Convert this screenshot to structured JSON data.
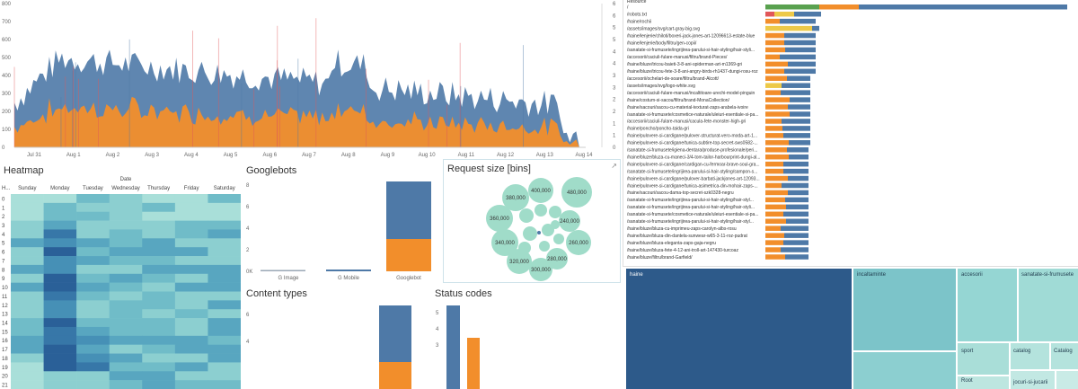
{
  "colors": {
    "blue": "#4e79a7",
    "orange": "#f28e2b",
    "green": "#59a14f",
    "yellow": "#edc948",
    "red": "#e15759",
    "teal_bubble": "#a0dcc9",
    "heat_low": "#c6ece4",
    "heat_high": "#1e5c8c",
    "tm_dark": "#2d5a8a",
    "tm_mid": "#7cc4c9",
    "tm_light": "#b4e3dd"
  },
  "timeline": {
    "x_ticks": [
      "Jul 31",
      "Aug 1",
      "Aug 2",
      "Aug 3",
      "Aug 4",
      "Aug 5",
      "Aug 6",
      "Aug 7",
      "Aug 8",
      "Aug 9",
      "Aug 10",
      "Aug 11",
      "Aug 12",
      "Aug 13",
      "Aug 14"
    ],
    "y_ticks": [
      "0",
      "100",
      "200",
      "300",
      "400",
      "500",
      "600",
      "700",
      "800"
    ],
    "y2_ticks": [
      "0",
      "1",
      "1",
      "2",
      "2",
      "3",
      "3",
      "4",
      "4",
      "5",
      "5",
      "6",
      "6"
    ]
  },
  "heatmap": {
    "title": "Heatmap",
    "col_group_label": "Date",
    "row_header": "H...",
    "columns": [
      "Sunday",
      "Monday",
      "Tuesday",
      "Wednesday",
      "Thursday",
      "Friday",
      "Saturday"
    ],
    "rows": [
      "0",
      "1",
      "2",
      "3",
      "4",
      "5",
      "6",
      "7",
      "8",
      "9",
      "10",
      "11",
      "12",
      "13",
      "14",
      "15",
      "16",
      "17",
      "18",
      "19",
      "20",
      "21"
    ]
  },
  "googlebots": {
    "title": "Googlebots",
    "categories": [
      "G Image",
      "G Mobile",
      "Googlebot"
    ],
    "y_ticks": [
      "0K",
      "2",
      "4",
      "6",
      "8"
    ]
  },
  "content_types": {
    "title": "Content types",
    "y_ticks": [
      "6",
      "4"
    ]
  },
  "status_codes": {
    "title": "Status codes",
    "y_ticks": [
      "5",
      "4",
      "3"
    ]
  },
  "request_size": {
    "title": "Request size [bins]",
    "bubbles": [
      "480,000",
      "400,000",
      "380,000",
      "360,000",
      "340,000",
      "320,000",
      "300,000",
      "260,000",
      "240,000",
      "280,000"
    ]
  },
  "urls": {
    "header": "Resource",
    "items": [
      "/",
      "/robots.txt",
      "/haine/rochii",
      "/assets/images/svg/cart-gray-big.svg",
      "/haine/lenjerie/chiloti/boxeri-jack-jones-art-12096613-estate-blue",
      "/haine/lenjerie/body/filtru/gen-copii/",
      "/sanatate-si-frumusete/ingrijirea-parului-si-hair-styling/hair-styli...",
      "/accesorii/caciuli-fulare-manusi/filtru/brand-Pieces/",
      "/haine/bluze/tricou-baieti-3-8-ani-spiderman-art-m1369-gri",
      "/haine/bluze/tricou-fete-3-8-ani-angry-birds-rh1437-dungi-rosu-roz",
      "/accesorii/ochelari-de-soare/filtru/brand-Alcott/",
      "/assets/images/svg/logo-white.svg",
      "/accesorii/caciuli-fulare-manusi/incaltitoare-urechi-model-pinguin",
      "/haine/costum-si-sacou/filtru/brand-MonaCollection/",
      "/haine/sacouri/sacou-cu-material-texturat-zaps-arabela-ivoire",
      "/sanatate-si-frumusete/cosmetice-naturale/uleiuri-esentiale-si-pa...",
      "/accesorii/caciuli-fulare-manusi/cacula-fete-monster-high-gri",
      "/haine/poncho/poncho-taida-gri",
      "/haine/pulovere-si-cardigane/pulover-structurat-vero-moda-art-1...",
      "/haine/pulovere-si-cardigane/tunica-subtire-top-secret-sws0582-...",
      "/sanatate-si-frumusete/igiena-dentara/produse-profesionale/peri...",
      "/haine/bluze/bluza-cu-maneci-3/4-tom-tailor-harbourprint-dungi-al...",
      "/haine/pulovere-si-cardigane/cardigan-cu-fermoar-brave-soul-gra...",
      "/sanatate-si-frumusete/ingrijirea-parului-si-hair-styling/sampon-s...",
      "/haine/pulovere-si-cardigane/pulover-barbati-jackjones-art-12093...",
      "/haine/pulovere-si-cardigane/tunica-asimetrica-din-mohair-zaps-...",
      "/haine/sacouri/sacou-dama-top-secret-szk0328-negru",
      "/sanatate-si-frumusete/ingrijirea-parului-si-hair-styling/hair-styl...",
      "/sanatate-si-frumusete/ingrijirea-parului-si-hair-styling/hair-styli...",
      "/sanatate-si-frumusete/cosmetice-naturale/uleiuri-esentiale-si-pa...",
      "/sanatate-si-frumusete/ingrijirea-parului-si-hair-styling/hair-styl...",
      "/haine/bluze/bluza-cu-imprimeu-zaps-carolyn-albs-rosu",
      "/haine/bluze/bluza-din-dantela-sunwear-w65-3-11-roz-pudrat",
      "/haine/bluze/bluza-eleganta-zaps-gaja-negru",
      "/haine/bluze/bluza-fete-4-12-ani-troll-art-147430-turcoaz",
      "/haine/bluze/filtru/brand-Garfield/"
    ]
  },
  "treemap": {
    "cells": [
      "haine",
      "incaltaminte",
      "accesorii",
      "sanatate-si-frumusete",
      "sport",
      "catalog",
      "Catalog",
      "Root",
      "jocuri-si-jucarii"
    ]
  }
}
